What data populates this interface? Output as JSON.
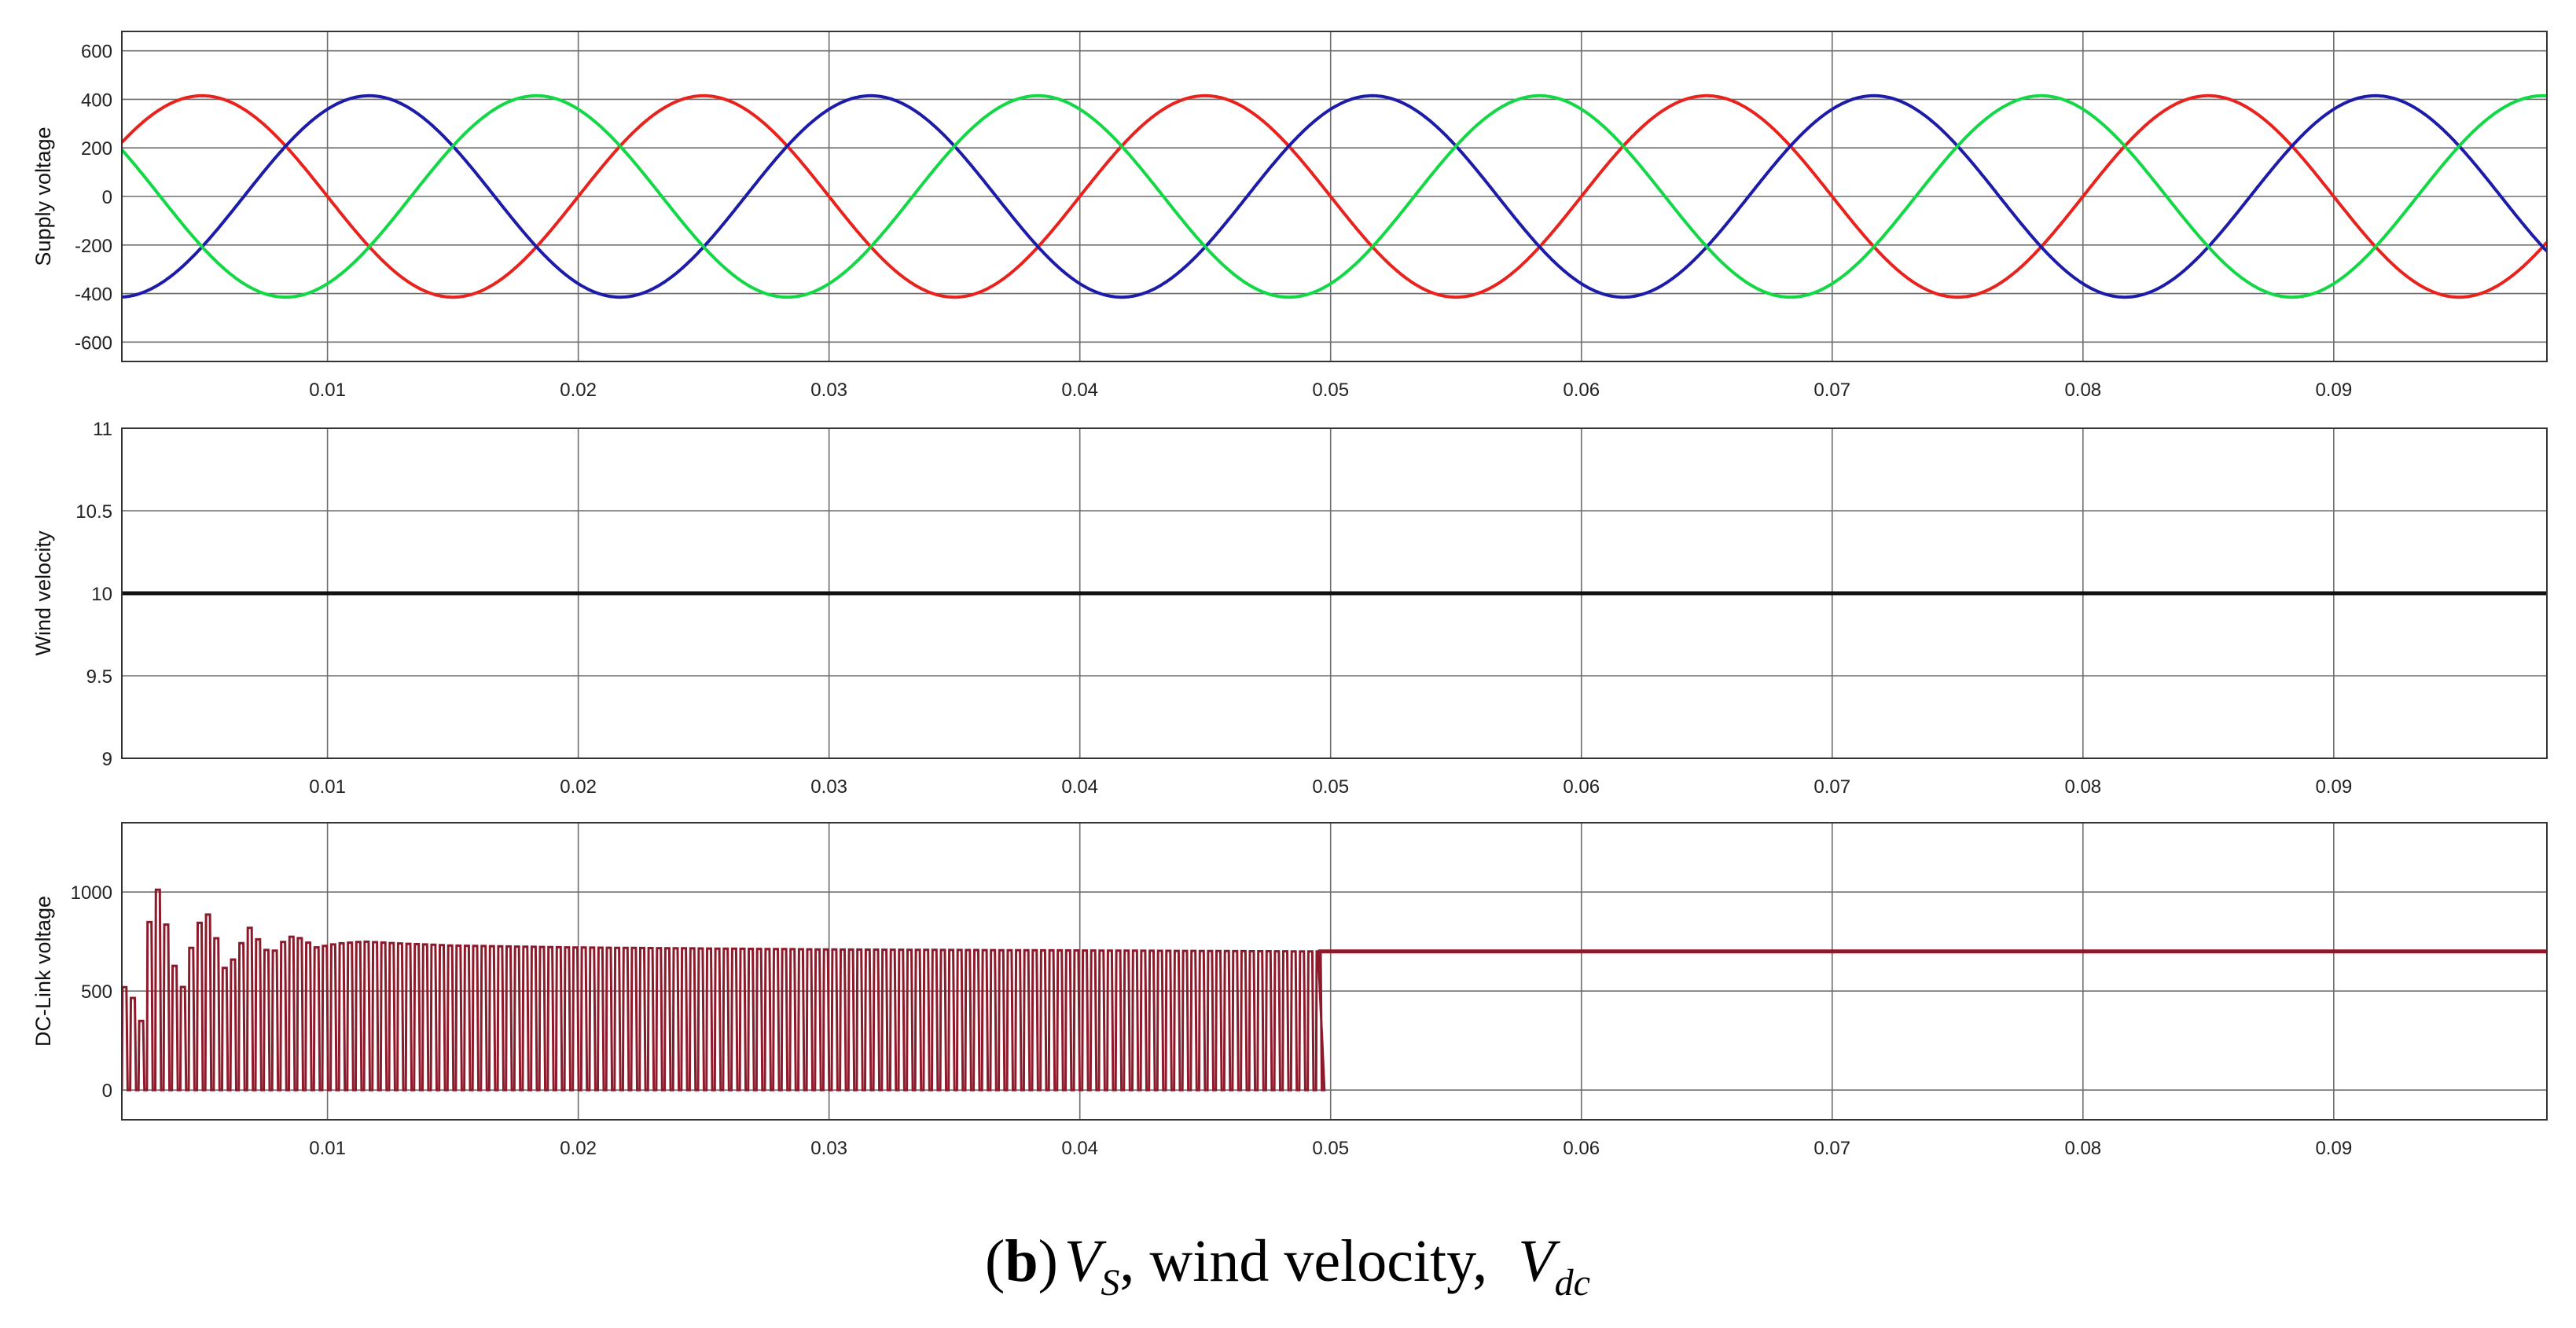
{
  "chart_data": [
    {
      "type": "line",
      "ylabel": "Supply voltage",
      "xlim": [
        0.0018,
        0.0985
      ],
      "ylim": [
        -680,
        680
      ],
      "yticks": [
        600,
        400,
        200,
        0,
        -200,
        -400,
        -600
      ],
      "yticklabels": [
        "600",
        "400",
        "200",
        "0",
        "-200",
        "-400",
        "-600"
      ],
      "xticks": [
        0.01,
        0.02,
        0.03,
        0.04,
        0.05,
        0.06,
        0.07,
        0.08,
        0.09
      ],
      "xticklabels": [
        "0.01",
        "0.02",
        "0.03",
        "0.04",
        "0.05",
        "0.06",
        "0.07",
        "0.08",
        "0.09"
      ],
      "grid": true,
      "waveform": {
        "amplitude": 415,
        "frequency_hz": 50
      },
      "series": [
        {
          "color": "#e8221c",
          "phase_deg": 0
        },
        {
          "color": "#1c1ca8",
          "phase_deg": -120
        },
        {
          "color": "#12d846",
          "phase_deg": 120
        }
      ]
    },
    {
      "type": "line",
      "ylabel": "Wind velocity",
      "xlim": [
        0.0018,
        0.0985
      ],
      "ylim": [
        9,
        11
      ],
      "yticks": [
        11,
        10.5,
        10,
        9.5,
        9
      ],
      "yticklabels": [
        "11",
        "10.5",
        "10",
        "9.5",
        "9"
      ],
      "xticks": [
        0.01,
        0.02,
        0.03,
        0.04,
        0.05,
        0.06,
        0.07,
        0.08,
        0.09
      ],
      "xticklabels": [
        "0.01",
        "0.02",
        "0.03",
        "0.04",
        "0.05",
        "0.06",
        "0.07",
        "0.08",
        "0.09"
      ],
      "grid": true,
      "series": [
        {
          "color": "#111111",
          "x": [
            0.0018,
            0.0985
          ],
          "y": [
            10,
            10
          ]
        }
      ]
    },
    {
      "type": "line",
      "ylabel": "DC-Link voltage",
      "xlim": [
        0.0018,
        0.0985
      ],
      "ylim": [
        -150,
        1350
      ],
      "yticks": [
        1000,
        500,
        0
      ],
      "yticklabels": [
        "1000",
        "500",
        "0"
      ],
      "xticks": [
        0.01,
        0.02,
        0.03,
        0.04,
        0.05,
        0.06,
        0.07,
        0.08,
        0.09
      ],
      "xticklabels": [
        "0.01",
        "0.02",
        "0.03",
        "0.04",
        "0.05",
        "0.06",
        "0.07",
        "0.08",
        "0.09"
      ],
      "grid": true,
      "pulse_train": {
        "start": 0.0018,
        "end": 0.0495,
        "pulse_period": 0.000333,
        "low_value": 0,
        "steady_value": 700,
        "early_peaks": [
          {
            "t": 0.0022,
            "v": 520
          },
          {
            "t": 0.0026,
            "v": 300
          },
          {
            "t": 0.003,
            "v": 900
          },
          {
            "t": 0.0034,
            "v": 1050
          },
          {
            "t": 0.0038,
            "v": 680
          },
          {
            "t": 0.0043,
            "v": 520
          },
          {
            "t": 0.0047,
            "v": 760
          },
          {
            "t": 0.0052,
            "v": 920
          },
          {
            "t": 0.0056,
            "v": 780
          },
          {
            "t": 0.006,
            "v": 600
          },
          {
            "t": 0.0065,
            "v": 700
          },
          {
            "t": 0.0069,
            "v": 830
          },
          {
            "t": 0.0073,
            "v": 760
          },
          {
            "t": 0.0078,
            "v": 680
          },
          {
            "t": 0.0082,
            "v": 740
          },
          {
            "t": 0.0087,
            "v": 780
          },
          {
            "t": 0.0091,
            "v": 760
          },
          {
            "t": 0.0096,
            "v": 720
          },
          {
            "t": 0.0105,
            "v": 740
          },
          {
            "t": 0.0115,
            "v": 750
          },
          {
            "t": 0.013,
            "v": 740
          },
          {
            "t": 0.015,
            "v": 730
          },
          {
            "t": 0.02,
            "v": 720
          },
          {
            "t": 0.03,
            "v": 710
          },
          {
            "t": 0.04,
            "v": 705
          },
          {
            "t": 0.0495,
            "v": 700
          }
        ]
      },
      "series": [
        {
          "color": "#8c1a2a",
          "x": [
            0.0495,
            0.0985
          ],
          "y": [
            700,
            700
          ]
        }
      ]
    }
  ],
  "caption": {
    "label": "b",
    "text_a": "V",
    "sub_a": "S",
    "text_b": ", wind velocity, ",
    "text_c": "V",
    "sub_c": "dc"
  }
}
